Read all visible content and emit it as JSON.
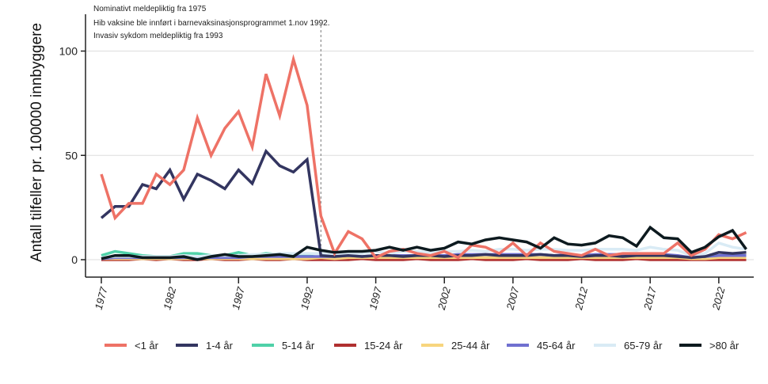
{
  "chart_data": {
    "type": "line",
    "title": "",
    "xlabel": "",
    "ylabel": "Antall tilfeller  pr. 100000 innbyggere",
    "xlim": [
      1977,
      2024
    ],
    "ylim": [
      0,
      110
    ],
    "yticks": [
      0,
      50,
      100
    ],
    "xticks": [
      1977,
      1982,
      1987,
      1992,
      1997,
      2002,
      2007,
      2012,
      2017,
      2022
    ],
    "grid": "horizontal",
    "legend_position": "bottom",
    "annotations": [
      "Nominativt meldepliktig fra 1975",
      "Hib vaksine ble innført i barnevaksinasjonsprogrammet 1.nov 1992.",
      "Invasiv sykdom meldepliktig fra 1993"
    ],
    "reference_line_x": 1993,
    "x_start": 1977,
    "series": [
      {
        "name": "<1 år",
        "color": "#ee7266",
        "values": [
          41,
          20,
          27,
          27,
          41,
          36,
          43,
          68,
          50,
          63,
          71,
          54,
          89,
          69,
          96,
          74,
          21,
          3,
          13.5,
          10,
          1,
          4,
          5,
          3,
          2,
          4,
          1,
          7,
          6,
          3,
          8,
          2,
          8,
          4,
          3,
          2,
          5,
          2,
          3,
          3,
          3,
          3,
          8,
          2,
          5,
          12,
          10,
          13
        ]
      },
      {
        "name": "1-4 år",
        "color": "#333560",
        "values": [
          20,
          25.5,
          25.5,
          36,
          34,
          43,
          29,
          41,
          38,
          34,
          43,
          36.5,
          52,
          45,
          42,
          48,
          2,
          1.5,
          2,
          1.5,
          2,
          2,
          1.5,
          2,
          2,
          1.5,
          2,
          2,
          2.5,
          2,
          2,
          2,
          2.5,
          2,
          2,
          1.5,
          2,
          2,
          1.5,
          2,
          2,
          2,
          1.5,
          1,
          1.5,
          3.5,
          3,
          3.5
        ]
      },
      {
        "name": "5-14 år",
        "color": "#4fd1a8",
        "values": [
          2,
          4,
          3,
          2,
          1.5,
          1.5,
          3,
          3,
          2,
          2,
          3.5,
          2,
          3,
          2.5,
          2,
          2,
          1,
          0.5,
          0.5,
          0.5,
          0.5,
          0.5,
          0.5,
          0.5,
          0.5,
          0.5,
          0.5,
          0.5,
          0.5,
          0.5,
          0.5,
          0.5,
          0.5,
          0.5,
          0.5,
          0.5,
          0.5,
          0.5,
          0.5,
          0.5,
          0.5,
          0.5,
          0.5,
          0.5,
          0.5,
          0.5,
          0.5,
          0.5
        ]
      },
      {
        "name": "15-24 år",
        "color": "#b03030",
        "values": [
          0,
          0,
          0,
          0.5,
          0,
          0.5,
          0,
          0,
          0.5,
          0,
          0,
          0.5,
          0,
          0,
          0.5,
          0,
          0,
          0,
          0,
          0.5,
          0,
          0,
          0,
          0.5,
          0,
          0,
          0,
          0.5,
          0,
          0,
          0,
          0.5,
          0,
          0,
          0,
          0.5,
          0,
          0,
          0,
          0.5,
          0,
          0,
          0,
          0,
          0,
          0,
          0,
          0
        ]
      },
      {
        "name": "25-44 år",
        "color": "#f7d57e",
        "values": [
          0.5,
          0.5,
          0.5,
          0.5,
          0.5,
          0.5,
          0.5,
          0.5,
          0.5,
          0.5,
          0.5,
          0.5,
          0.5,
          0.5,
          0.5,
          0.5,
          1,
          0.5,
          1,
          1,
          1,
          1,
          1,
          1,
          1,
          1,
          1,
          1,
          1,
          1,
          1,
          1,
          1,
          1,
          1,
          1,
          1,
          1,
          1,
          1,
          1,
          1,
          1,
          0.5,
          0.5,
          1,
          1,
          1
        ]
      },
      {
        "name": "45-64 år",
        "color": "#7070d0",
        "values": [
          0.5,
          1,
          1,
          1,
          1,
          1,
          1,
          1,
          1,
          1,
          1,
          1.5,
          1.5,
          1.5,
          1.5,
          1.5,
          1.5,
          1.5,
          2,
          1.5,
          2,
          2,
          2,
          2,
          2,
          2,
          2.5,
          2.5,
          2.5,
          2.5,
          2.5,
          2.5,
          2.5,
          2,
          2.5,
          2,
          2.5,
          2.5,
          2.5,
          2,
          2.5,
          2.5,
          2,
          1,
          1.5,
          2,
          2,
          2
        ]
      },
      {
        "name": "65-79 år",
        "color": "#d9ebf5",
        "values": [
          1,
          1.5,
          1.5,
          1.5,
          1.5,
          1.5,
          2,
          1.5,
          2,
          2,
          2,
          2.5,
          2.5,
          3,
          3,
          3,
          3,
          2.5,
          3,
          3,
          4,
          3,
          4,
          4,
          3.5,
          4,
          4,
          4.5,
          4,
          5,
          5,
          4.5,
          5,
          5,
          4.5,
          4.5,
          5,
          5,
          5,
          4.5,
          6,
          5,
          4.5,
          2,
          3,
          8,
          6,
          5
        ]
      },
      {
        "name": ">80 år",
        "color": "#0d1a1f",
        "values": [
          0.5,
          2,
          2,
          1,
          1,
          1,
          1.5,
          0,
          1.5,
          2.5,
          1.5,
          1.5,
          2,
          2.5,
          1.5,
          6,
          4.5,
          3.5,
          4,
          4,
          4.5,
          6,
          4.5,
          6,
          4.5,
          5.5,
          8.5,
          7.5,
          9.5,
          10.5,
          9.5,
          8.5,
          5.5,
          10.5,
          7.5,
          7,
          8,
          11.5,
          10.5,
          6.5,
          15.5,
          10.5,
          10,
          3.5,
          6,
          11,
          14,
          5
        ]
      }
    ]
  }
}
